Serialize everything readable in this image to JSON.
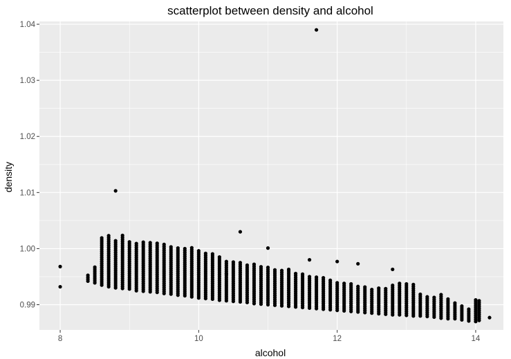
{
  "chart_data": {
    "type": "scatter",
    "title": "scatterplot between density and alcohol",
    "xlabel": "alcohol",
    "ylabel": "density",
    "xlim": [
      7.7,
      14.4
    ],
    "ylim": [
      0.9855,
      1.0405
    ],
    "x_ticks": [
      8,
      10,
      12,
      14
    ],
    "x_tick_labels": [
      "8",
      "10",
      "12",
      "14"
    ],
    "y_ticks": [
      0.99,
      1.0,
      1.01,
      1.02,
      1.03,
      1.04
    ],
    "y_tick_labels": [
      "0.99",
      "1.00",
      "1.01",
      "1.02",
      "1.03",
      "1.04"
    ],
    "grid": true,
    "colors": {
      "panel": "#ebebeb",
      "grid": "#ffffff",
      "points": "#000000"
    },
    "outliers": [
      [
        11.7,
        1.039
      ],
      [
        8.8,
        1.0103
      ],
      [
        10.6,
        1.003
      ],
      [
        11.0,
        1.0001
      ],
      [
        8.0,
        0.9968
      ],
      [
        8.0,
        0.9932
      ],
      [
        11.6,
        0.998
      ],
      [
        12.0,
        0.9977
      ],
      [
        12.3,
        0.9973
      ],
      [
        12.8,
        0.9963
      ],
      [
        10.4,
        0.9955
      ],
      [
        11.3,
        0.9963
      ]
    ],
    "columns": [
      [
        8.4,
        0.9942,
        0.9954
      ],
      [
        8.5,
        0.9939,
        0.9968
      ],
      [
        8.6,
        0.9935,
        1.002
      ],
      [
        8.7,
        0.9932,
        1.0024
      ],
      [
        8.8,
        0.993,
        1.0015
      ],
      [
        8.9,
        0.9929,
        1.0025
      ],
      [
        9.0,
        0.9928,
        1.0012
      ],
      [
        9.1,
        0.9925,
        1.001
      ],
      [
        9.2,
        0.9924,
        1.0013
      ],
      [
        9.3,
        0.9923,
        1.0012
      ],
      [
        9.4,
        0.9922,
        1.0011
      ],
      [
        9.5,
        0.992,
        1.001
      ],
      [
        9.6,
        0.9919,
        1.0005
      ],
      [
        9.7,
        0.9917,
        1.0004
      ],
      [
        9.8,
        0.9916,
        1.0003
      ],
      [
        9.9,
        0.9914,
        1.0002
      ],
      [
        10.0,
        0.9912,
        0.9996
      ],
      [
        10.1,
        0.9911,
        0.9993
      ],
      [
        10.2,
        0.991,
        0.9993
      ],
      [
        10.3,
        0.9908,
        0.9985
      ],
      [
        10.4,
        0.9907,
        0.998
      ],
      [
        10.5,
        0.9906,
        0.9978
      ],
      [
        10.6,
        0.9905,
        0.9975
      ],
      [
        10.7,
        0.9904,
        0.9972
      ],
      [
        10.8,
        0.9902,
        0.9972
      ],
      [
        10.9,
        0.9901,
        0.997
      ],
      [
        11.0,
        0.99,
        0.9968
      ],
      [
        11.1,
        0.9899,
        0.9965
      ],
      [
        11.2,
        0.9898,
        0.9962
      ],
      [
        11.3,
        0.9897,
        0.996
      ],
      [
        11.4,
        0.9896,
        0.9958
      ],
      [
        11.5,
        0.9895,
        0.9955
      ],
      [
        11.6,
        0.9894,
        0.9952
      ],
      [
        11.7,
        0.9893,
        0.995
      ],
      [
        11.8,
        0.9892,
        0.9948
      ],
      [
        11.9,
        0.9891,
        0.9945
      ],
      [
        12.0,
        0.989,
        0.9942
      ],
      [
        12.1,
        0.9889,
        0.994
      ],
      [
        12.2,
        0.9888,
        0.9938
      ],
      [
        12.3,
        0.9887,
        0.9935
      ],
      [
        12.4,
        0.9886,
        0.9933
      ],
      [
        12.5,
        0.9885,
        0.993
      ],
      [
        12.6,
        0.9884,
        0.993
      ],
      [
        12.7,
        0.9883,
        0.993
      ],
      [
        12.8,
        0.9882,
        0.9935
      ],
      [
        12.9,
        0.9882,
        0.9938
      ],
      [
        13.0,
        0.9881,
        0.994
      ],
      [
        13.1,
        0.988,
        0.9938
      ],
      [
        13.2,
        0.988,
        0.992
      ],
      [
        13.3,
        0.9879,
        0.9915
      ],
      [
        13.4,
        0.9878,
        0.9915
      ],
      [
        13.5,
        0.9876,
        0.992
      ],
      [
        13.6,
        0.9875,
        0.991
      ],
      [
        13.7,
        0.9875,
        0.9905
      ],
      [
        13.8,
        0.9873,
        0.99
      ],
      [
        13.9,
        0.9871,
        0.9895
      ],
      [
        14.0,
        0.987,
        0.991
      ],
      [
        14.05,
        0.9872,
        0.9908
      ],
      [
        14.2,
        0.9877,
        0.9877
      ]
    ],
    "step": 0.00035
  }
}
